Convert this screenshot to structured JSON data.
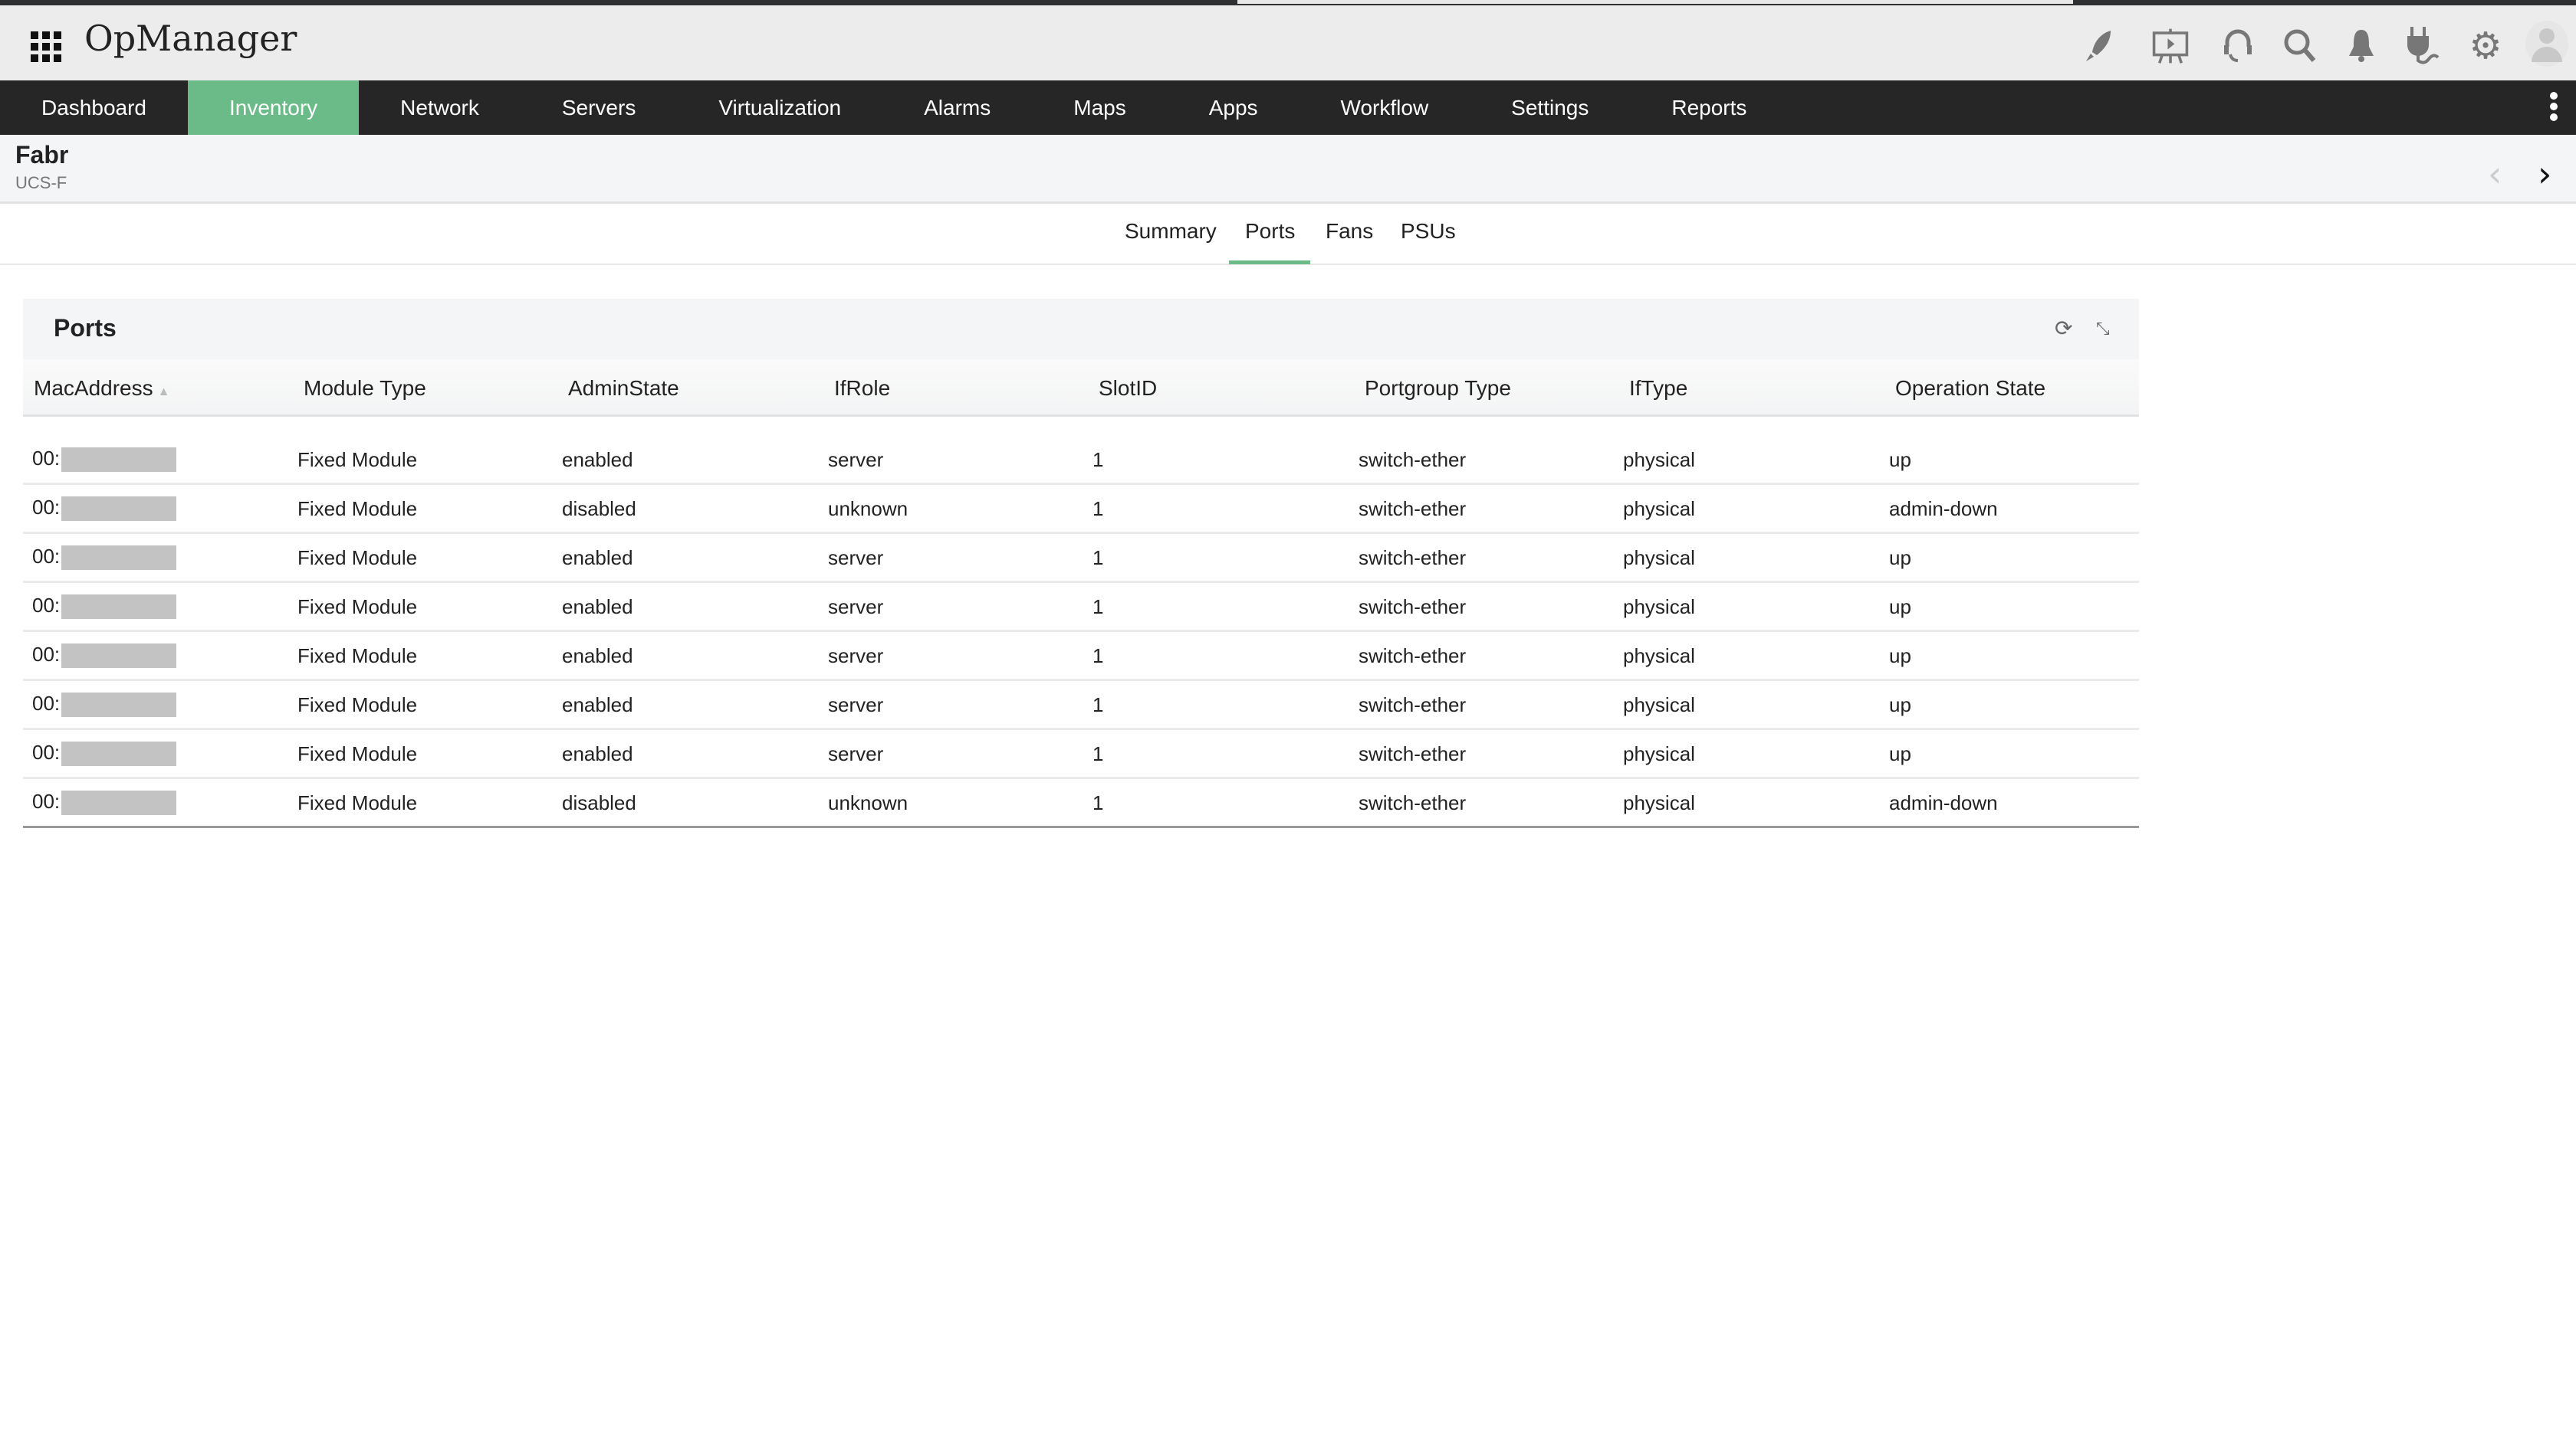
{
  "app": {
    "title": "OpManager"
  },
  "nav": {
    "items": [
      "Dashboard",
      "Inventory",
      "Network",
      "Servers",
      "Virtualization",
      "Alarms",
      "Maps",
      "Apps",
      "Workflow",
      "Settings",
      "Reports"
    ],
    "active": "Inventory"
  },
  "device": {
    "name": "Fabr",
    "type": "UCS-F"
  },
  "tabs": [
    "Summary",
    "Ports",
    "Fans",
    "PSUs"
  ],
  "active_tab": "Ports",
  "panel": {
    "title": "Ports"
  },
  "table": {
    "columns": [
      "MacAddress",
      "Module Type",
      "AdminState",
      "IfRole",
      "SlotID",
      "Portgroup Type",
      "IfType",
      "Operation State"
    ],
    "rows": [
      [
        "00:",
        "Fixed Module",
        "enabled",
        "server",
        "1",
        "switch-ether",
        "physical",
        "up"
      ],
      [
        "00:",
        "Fixed Module",
        "disabled",
        "unknown",
        "1",
        "switch-ether",
        "physical",
        "admin-down"
      ],
      [
        "00:",
        "Fixed Module",
        "enabled",
        "server",
        "1",
        "switch-ether",
        "physical",
        "up"
      ],
      [
        "00:",
        "Fixed Module",
        "enabled",
        "server",
        "1",
        "switch-ether",
        "physical",
        "up"
      ],
      [
        "00:",
        "Fixed Module",
        "enabled",
        "server",
        "1",
        "switch-ether",
        "physical",
        "up"
      ],
      [
        "00:",
        "Fixed Module",
        "enabled",
        "server",
        "1",
        "switch-ether",
        "physical",
        "up"
      ],
      [
        "00:",
        "Fixed Module",
        "enabled",
        "server",
        "1",
        "switch-ether",
        "physical",
        "up"
      ],
      [
        "00:",
        "Fixed Module",
        "disabled",
        "unknown",
        "1",
        "switch-ether",
        "physical",
        "admin-down"
      ]
    ]
  },
  "colors": {
    "accent": "#6abb87",
    "nav_bg": "#262626"
  },
  "icons": [
    "apps-grid-icon",
    "rocket-icon",
    "presentation-icon",
    "headset-icon",
    "search-icon",
    "bell-icon",
    "plug-icon",
    "gear-icon",
    "avatar-icon",
    "kebab-menu-icon",
    "chevron-left-icon",
    "chevron-right-icon",
    "refresh-icon",
    "collapse-icon",
    "sort-icon"
  ]
}
